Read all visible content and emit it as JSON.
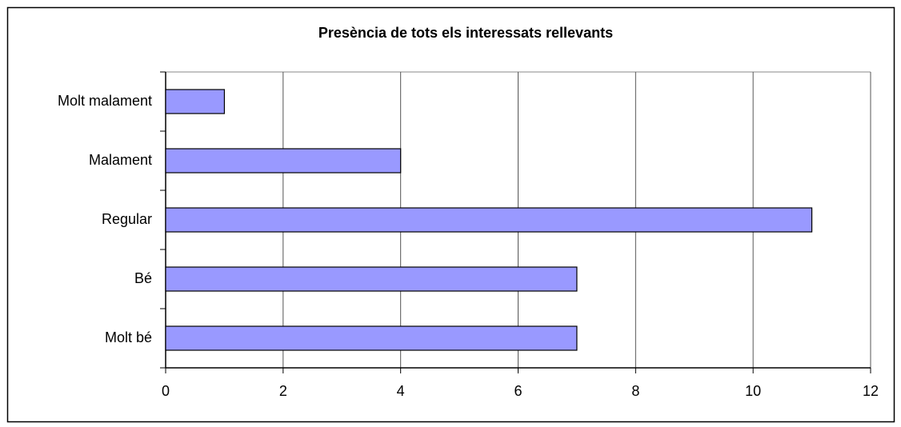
{
  "chart_data": {
    "type": "barh",
    "title": "Presència de tots els interessats rellevants",
    "categories": [
      "Molt malament",
      "Malament",
      "Regular",
      "Bé",
      "Molt bé"
    ],
    "values": [
      1,
      4,
      11,
      7,
      7
    ],
    "color": "#9999ff",
    "xlim": [
      0,
      12
    ],
    "xticks": [
      0,
      2,
      4,
      6,
      8,
      10,
      12
    ],
    "grid": true
  }
}
